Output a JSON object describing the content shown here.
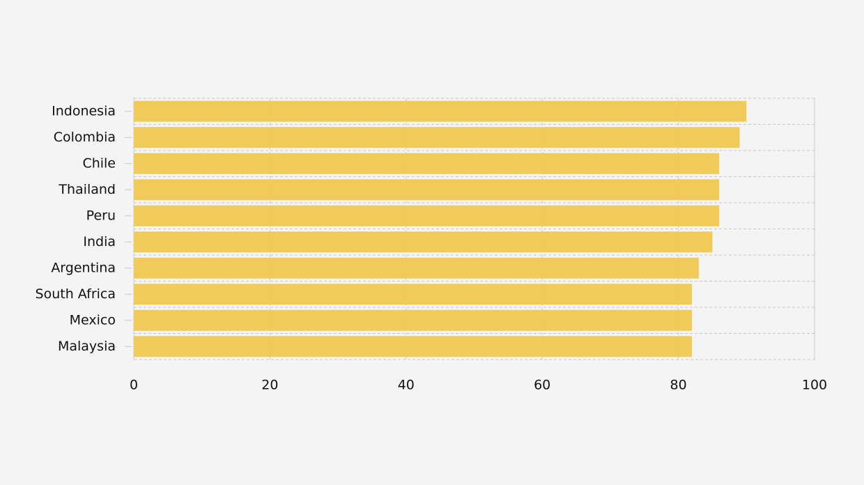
{
  "chart_data": {
    "type": "bar",
    "orientation": "horizontal",
    "categories": [
      "Indonesia",
      "Colombia",
      "Chile",
      "Thailand",
      "Peru",
      "India",
      "Argentina",
      "South Africa",
      "Mexico",
      "Malaysia"
    ],
    "values": [
      90,
      89,
      86,
      86,
      86,
      85,
      83,
      82,
      82,
      82
    ],
    "color": "#f0c850",
    "xlim": [
      0,
      100
    ],
    "xticks": [
      0,
      20,
      40,
      60,
      80,
      100
    ],
    "grid": true
  }
}
